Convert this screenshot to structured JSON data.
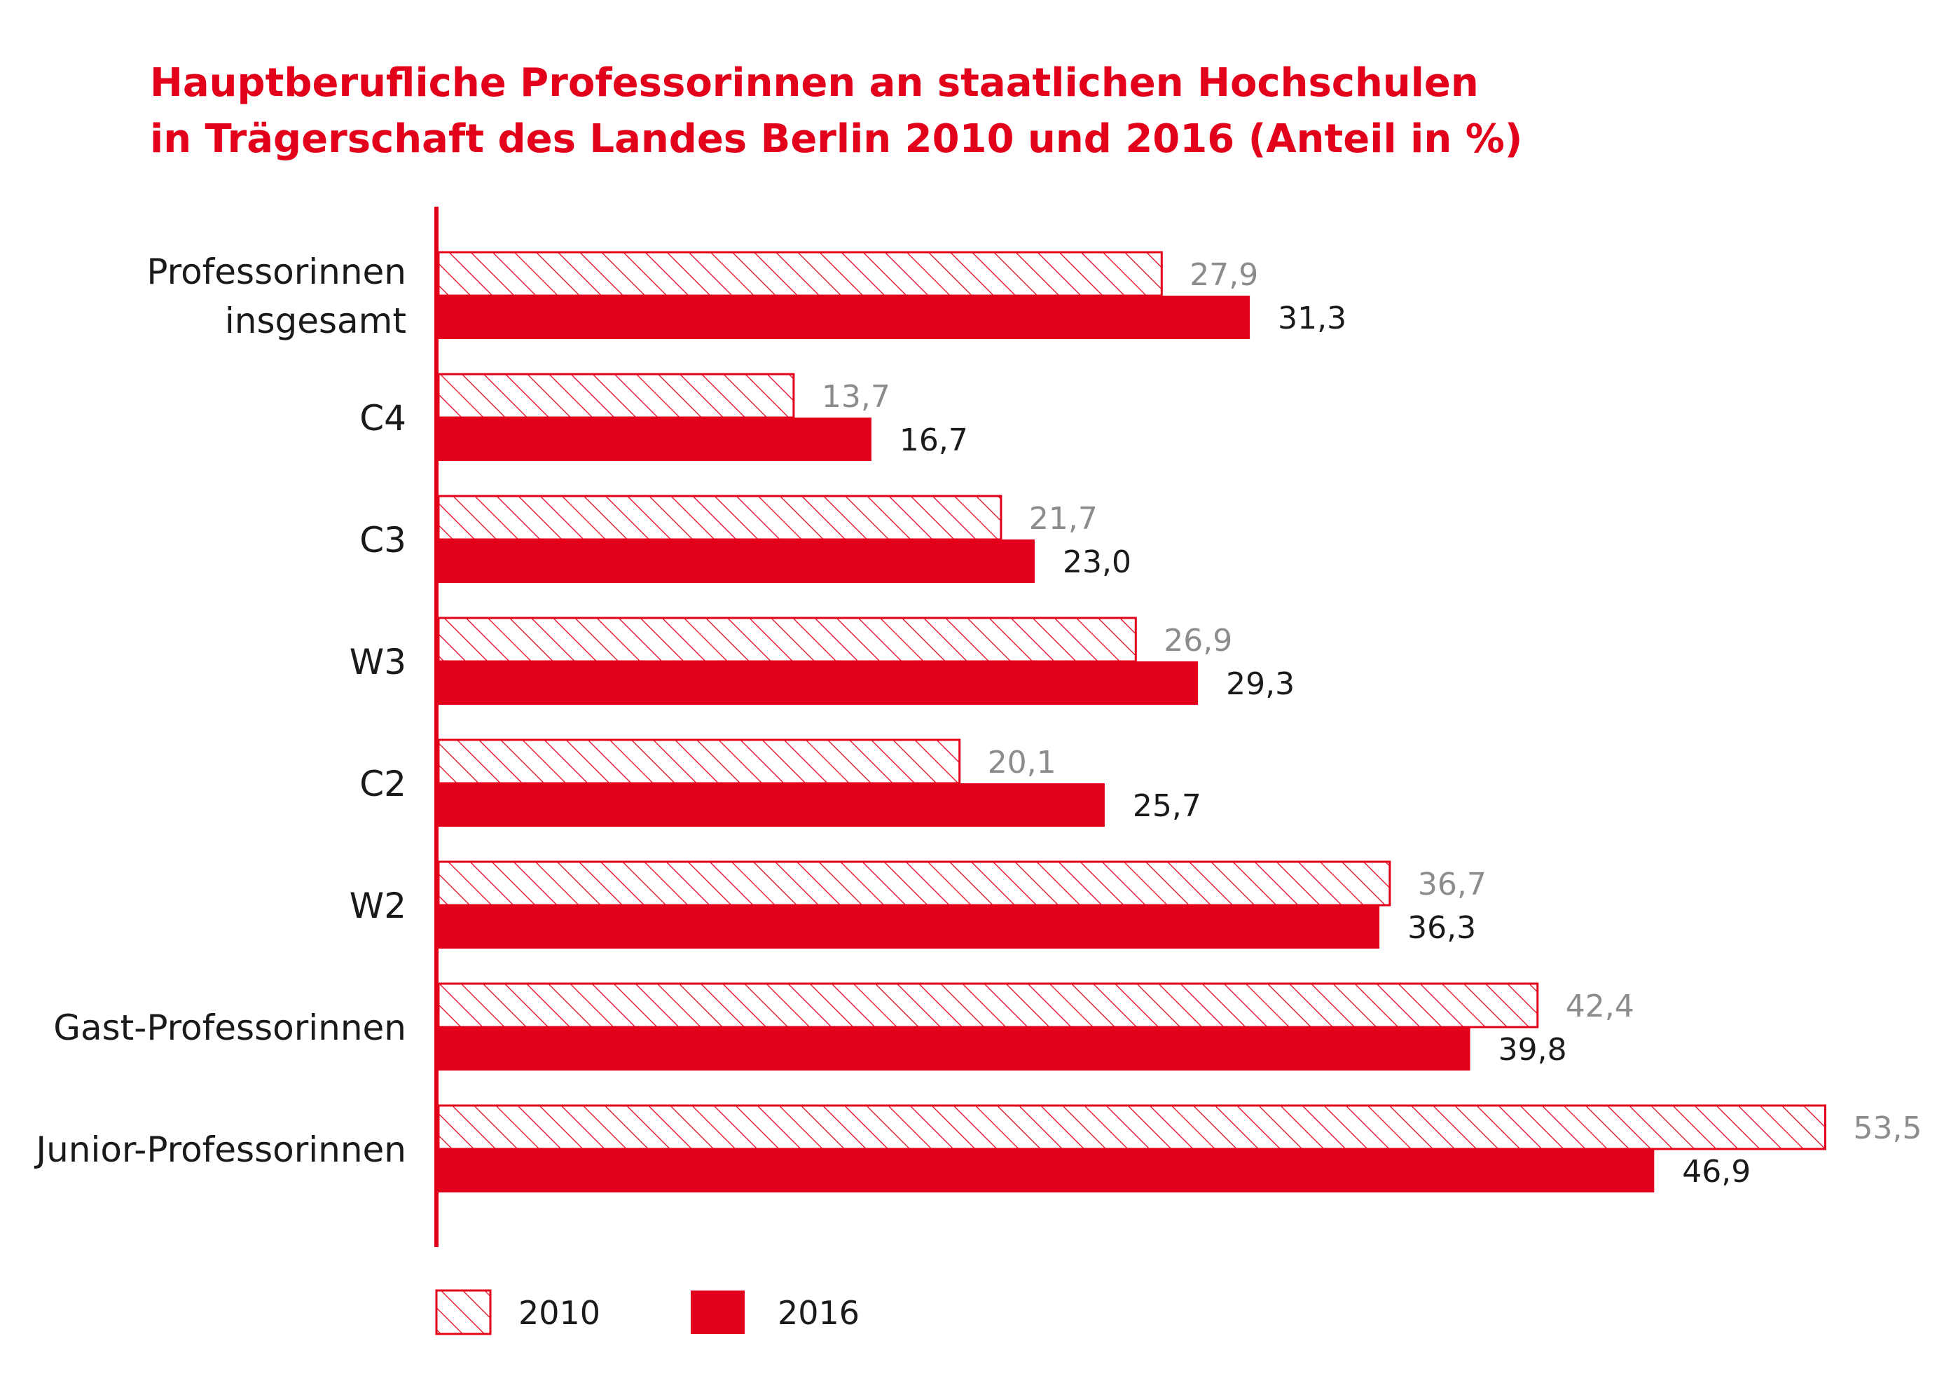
{
  "chart_data": {
    "type": "bar",
    "orientation": "horizontal",
    "title": [
      "Hauptberufliche Professorinnen an staatlichen Hochschulen",
      "in Trägerschaft des Landes Berlin 2010 und 2016 (Anteil in %)"
    ],
    "categories": [
      [
        "Professorinnen",
        "insgesamt"
      ],
      [
        "C4"
      ],
      [
        "C3"
      ],
      [
        "W3"
      ],
      [
        "C2"
      ],
      [
        "W2"
      ],
      [
        "Gast-Professorinnen"
      ],
      [
        "Junior-Professorinnen"
      ]
    ],
    "series": [
      {
        "name": "2010",
        "style": "hatched",
        "values": [
          27.9,
          13.7,
          21.7,
          26.9,
          20.1,
          36.7,
          42.4,
          53.5
        ],
        "labels": [
          "27,9",
          "13,7",
          "21,7",
          "26,9",
          "20,1",
          "36,7",
          "42,4",
          "53,5"
        ]
      },
      {
        "name": "2016",
        "style": "solid",
        "values": [
          31.3,
          16.7,
          23.0,
          29.3,
          25.7,
          36.3,
          39.8,
          46.9
        ],
        "labels": [
          "31,3",
          "16,7",
          "23,0",
          "29,3",
          "25,7",
          "36,3",
          "39,8",
          "46,9"
        ]
      }
    ],
    "xlim": [
      0,
      53.5
    ],
    "grid": false,
    "legend_position": "bottom-left"
  },
  "colors": {
    "accent": "#e2001a",
    "label_2010": "#8c8c8c",
    "label_2016": "#1a1a1a",
    "text": "#1a1a1a"
  }
}
